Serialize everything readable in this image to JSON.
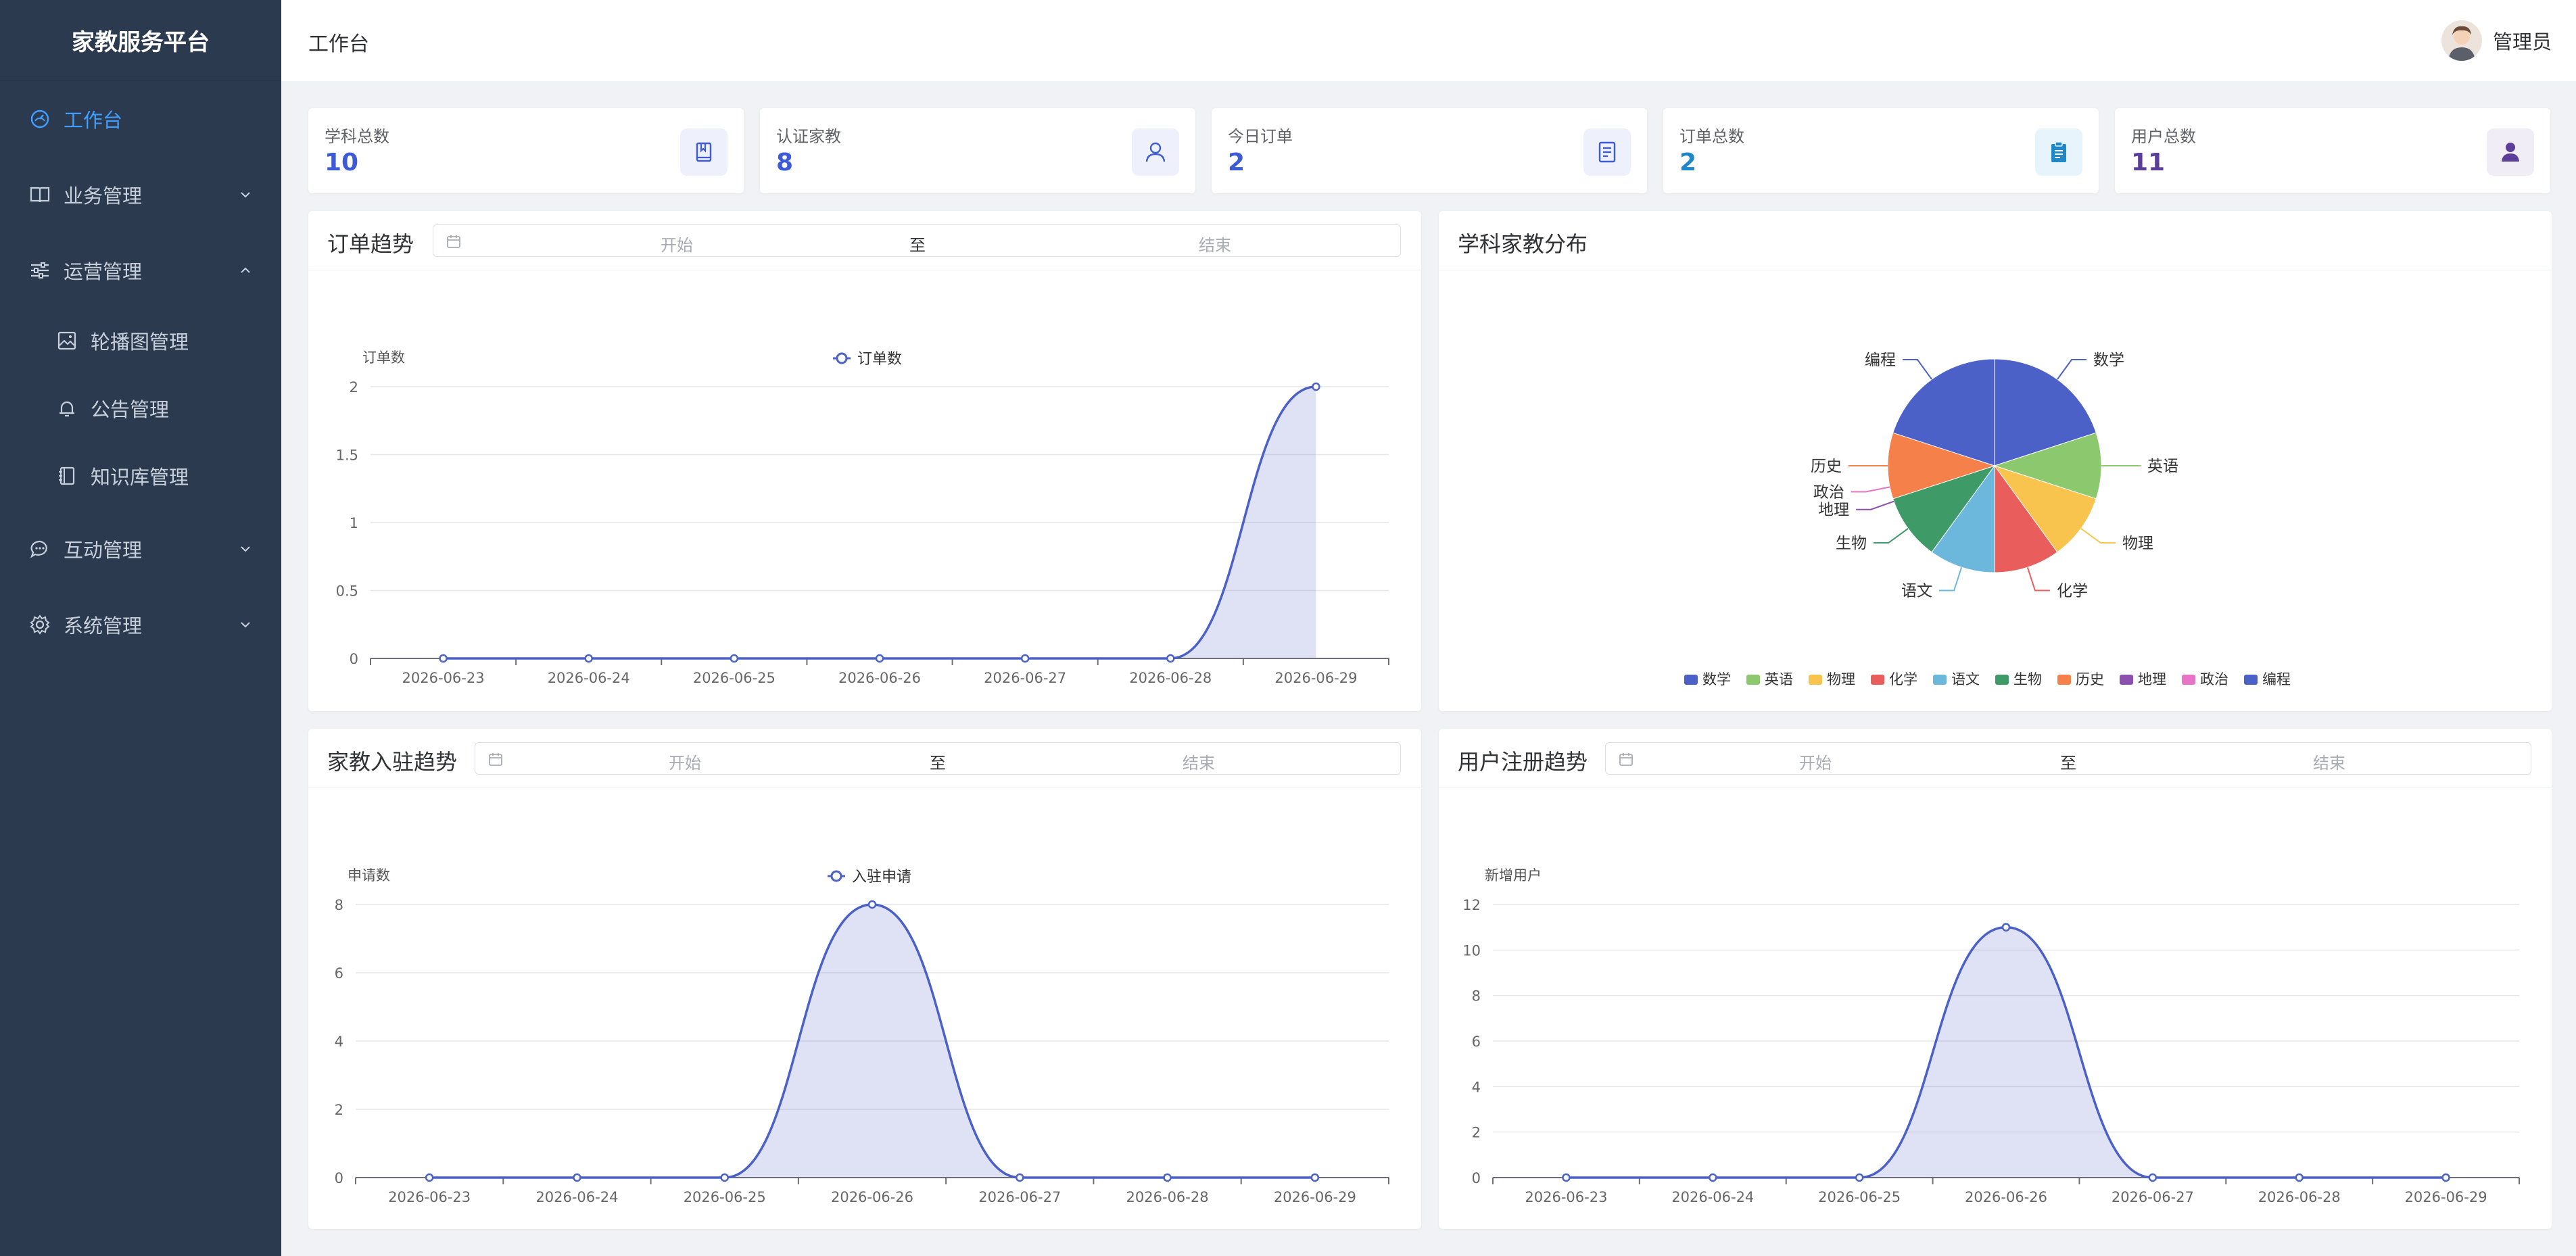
{
  "app": {
    "title": "家教服务平台"
  },
  "menu": {
    "items": [
      {
        "label": "工作台",
        "active": true
      },
      {
        "label": "业务管理"
      },
      {
        "label": "运营管理"
      },
      {
        "label": "互动管理"
      },
      {
        "label": "系统管理"
      }
    ],
    "sub_items": [
      {
        "label": "轮播图管理"
      },
      {
        "label": "公告管理"
      },
      {
        "label": "知识库管理"
      }
    ]
  },
  "header": {
    "breadcrumb": "工作台",
    "user_name": "管理员"
  },
  "stats": [
    {
      "label": "学科总数",
      "value": "10",
      "color": "#3e5bd6",
      "icon": "book-icon"
    },
    {
      "label": "认证家教",
      "value": "8",
      "color": "#3e5bd6",
      "icon": "user-icon"
    },
    {
      "label": "今日订单",
      "value": "2",
      "color": "#3e5bd6",
      "icon": "document-icon"
    },
    {
      "label": "订单总数",
      "value": "2",
      "color": "#1e88c8",
      "icon": "clipboard-icon"
    },
    {
      "label": "用户总数",
      "value": "11",
      "color": "#5a3e9a",
      "icon": "person-icon"
    }
  ],
  "range_picker": {
    "start": "开始",
    "sep": "至",
    "end": "结束"
  },
  "panels": {
    "order_trend": {
      "title": "订单趋势"
    },
    "subject_dist": {
      "title": "学科家教分布"
    },
    "tutor_trend": {
      "title": "家教入驻趋势"
    },
    "user_trend": {
      "title": "用户注册趋势"
    }
  },
  "chart_data": [
    {
      "type": "area",
      "ylabel": "订单数",
      "series": [
        {
          "name": "订单数",
          "values": [
            0,
            0,
            0,
            0,
            0,
            0,
            2
          ]
        }
      ],
      "x": [
        "2026-06-23",
        "2026-06-24",
        "2026-06-25",
        "2026-06-26",
        "2026-06-27",
        "2026-06-28",
        "2026-06-29"
      ],
      "ylim": [
        0,
        2
      ],
      "yticks": [
        "0",
        "0.5",
        "1",
        "1.5",
        "2"
      ],
      "color": "#4b61c7"
    },
    {
      "type": "pie",
      "categories": [
        "数学",
        "英语",
        "物理",
        "化学",
        "语文",
        "生物",
        "历史",
        "地理",
        "政治",
        "编程"
      ],
      "values": [
        2,
        1,
        1,
        1,
        1,
        1,
        1,
        0,
        0,
        2
      ],
      "colors": [
        "#4b61c7",
        "#8cc86e",
        "#f8c44e",
        "#ea5d5d",
        "#6bb8dc",
        "#3e9a66",
        "#f5804a",
        "#8c50ae",
        "#e774c6",
        "#4b61c7"
      ],
      "legend": "bottom"
    },
    {
      "type": "area",
      "ylabel": "申请数",
      "series": [
        {
          "name": "入驻申请",
          "values": [
            0,
            0,
            0,
            8,
            0,
            0,
            0
          ]
        }
      ],
      "x": [
        "2026-06-23",
        "2026-06-24",
        "2026-06-25",
        "2026-06-26",
        "2026-06-27",
        "2026-06-28",
        "2026-06-29"
      ],
      "ylim": [
        0,
        8
      ],
      "yticks": [
        "0",
        "2",
        "4",
        "6",
        "8"
      ],
      "color": "#4b61c7"
    },
    {
      "type": "area",
      "ylabel": "新增用户",
      "series": [
        {
          "values": [
            0,
            0,
            0,
            11,
            0,
            0,
            0
          ]
        }
      ],
      "x": [
        "2026-06-23",
        "2026-06-24",
        "2026-06-25",
        "2026-06-26",
        "2026-06-27",
        "2026-06-28",
        "2026-06-29"
      ],
      "ylim": [
        0,
        12
      ],
      "yticks": [
        "0",
        "2",
        "4",
        "6",
        "8",
        "10",
        "12"
      ],
      "color": "#4b61c7"
    }
  ]
}
